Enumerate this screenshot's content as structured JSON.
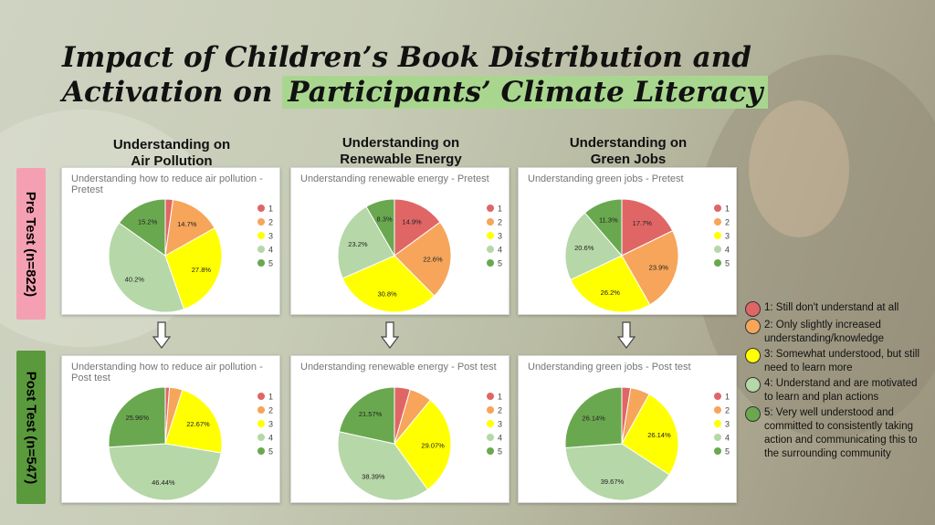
{
  "title": {
    "line1": "Impact of Children’s Book Distribution and",
    "line2_a": "Activation on ",
    "line2_b": "Participants’ Climate Literacy"
  },
  "columns": [
    {
      "line1": "Understanding on",
      "line2": "Air Pollution"
    },
    {
      "line1": "Understanding on",
      "line2": "Renewable Energy"
    },
    {
      "line1": "Understanding on",
      "line2": "Green Jobs"
    }
  ],
  "rows": {
    "pre": {
      "label": "Pre Test (n=822)",
      "color": "#f5a0b2"
    },
    "post": {
      "label": "Post Test (n=547)",
      "color": "#5a9a3c"
    }
  },
  "colors": [
    "#e06666",
    "#f6a55a",
    "#ffff00",
    "#b6d7a8",
    "#6aa84f"
  ],
  "chart_data": [
    {
      "type": "pie",
      "title": "Understanding how to reduce air pollution - Pretest",
      "categories": [
        "1",
        "2",
        "3",
        "4",
        "5"
      ],
      "values": [
        2.2,
        14.7,
        27.8,
        40.2,
        15.2
      ],
      "labels": [
        "",
        "14.7%",
        "27.8%",
        "40.2%",
        "15.2%"
      ],
      "legend": "right"
    },
    {
      "type": "pie",
      "title": "Understanding renewable energy - Pretest",
      "categories": [
        "1",
        "2",
        "3",
        "4",
        "5"
      ],
      "values": [
        14.9,
        22.6,
        30.8,
        23.2,
        8.3
      ],
      "labels": [
        "14.9%",
        "22.6%",
        "30.8%",
        "23.2%",
        "8.3%"
      ],
      "legend": "right"
    },
    {
      "type": "pie",
      "title": "Understanding green jobs - Pretest",
      "categories": [
        "1",
        "2",
        "3",
        "4",
        "5"
      ],
      "values": [
        17.7,
        23.9,
        26.2,
        20.6,
        11.3
      ],
      "labels": [
        "17.7%",
        "23.9%",
        "26.2%",
        "20.6%",
        "11.3%"
      ],
      "legend": "right"
    },
    {
      "type": "pie",
      "title": "Understanding how to reduce air pollution - Post test",
      "categories": [
        "1",
        "2",
        "3",
        "4",
        "5"
      ],
      "values": [
        1.2,
        3.73,
        22.67,
        46.44,
        25.96
      ],
      "labels": [
        "",
        "",
        "22.67%",
        "46.44%",
        "25.96%"
      ],
      "legend": "right"
    },
    {
      "type": "pie",
      "title": "Understanding renewable energy - Post test",
      "categories": [
        "1",
        "2",
        "3",
        "4",
        "5"
      ],
      "values": [
        4.5,
        6.47,
        29.07,
        38.39,
        21.57
      ],
      "labels": [
        "",
        "",
        "29.07%",
        "38.39%",
        "21.57%"
      ],
      "legend": "right"
    },
    {
      "type": "pie",
      "title": "Understanding green jobs - Post test",
      "categories": [
        "1",
        "2",
        "3",
        "4",
        "5"
      ],
      "values": [
        2.5,
        5.55,
        26.14,
        39.67,
        26.14
      ],
      "labels": [
        "",
        "",
        "26.14%",
        "39.67%",
        "26.14%"
      ],
      "legend": "right"
    }
  ],
  "legend": [
    {
      "text": "1: Still don't understand at all",
      "color": "#e06666"
    },
    {
      "text": "2: Only slightly increased understanding/knowledge",
      "color": "#f6a55a"
    },
    {
      "text": "3: Somewhat understood, but still need to learn more",
      "color": "#ffff00"
    },
    {
      "text": "4: Understand and are motivated to learn and plan actions",
      "color": "#b6d7a8"
    },
    {
      "text": "5: Very well understood and committed to consistently taking action and communicating this to the surrounding community",
      "color": "#6aa84f"
    }
  ]
}
